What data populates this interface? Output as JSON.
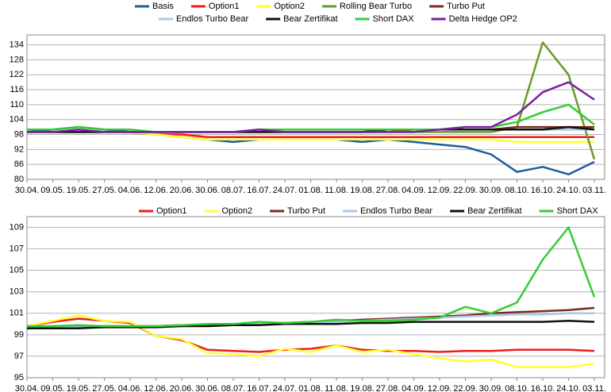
{
  "chart_data": [
    {
      "type": "line",
      "categories": [
        "30.04.",
        "09.05.",
        "19.05.",
        "27.05.",
        "04.06.",
        "12.06.",
        "20.06.",
        "30.06.",
        "08.07.",
        "16.07.",
        "24.07.",
        "01.08.",
        "11.08.",
        "19.08.",
        "27.08.",
        "04.09.",
        "12.09.",
        "22.09.",
        "30.09.",
        "08.10.",
        "16.10.",
        "24.10.",
        "03.11."
      ],
      "ylim": [
        80,
        138
      ],
      "yticks": [
        80,
        86,
        92,
        98,
        104,
        110,
        116,
        122,
        128,
        134
      ],
      "grid": true,
      "series": [
        {
          "name": "Basis",
          "color": "#1f5b9e",
          "values": [
            99,
            100,
            101,
            100,
            99,
            98,
            97,
            96,
            95,
            96,
            96,
            96,
            96,
            95,
            96,
            95,
            94,
            93,
            90,
            83,
            85,
            82,
            87
          ]
        },
        {
          "name": "Option1",
          "color": "#ee1c1c",
          "values": [
            99,
            99,
            99,
            99,
            99,
            98,
            98,
            97,
            97,
            97,
            97,
            97,
            97,
            97,
            97,
            97,
            97,
            97,
            97,
            97,
            97,
            97,
            97
          ]
        },
        {
          "name": "Option2",
          "color": "#ffff33",
          "values": [
            99,
            99,
            99,
            99,
            99,
            98,
            97,
            96,
            96,
            96,
            96,
            96,
            96,
            96,
            96,
            96,
            96,
            96,
            96,
            95,
            95,
            95,
            95
          ]
        },
        {
          "name": "Rolling Bear Turbo",
          "color": "#6a9a2a",
          "values": [
            99,
            99,
            99,
            99,
            99,
            99,
            99,
            99,
            99,
            99,
            99,
            99,
            99,
            99,
            99,
            99,
            99,
            99,
            99,
            101,
            135,
            122,
            88
          ]
        },
        {
          "name": "Turbo Put",
          "color": "#7b2a1a",
          "values": [
            99,
            99,
            99,
            99,
            99,
            99,
            99,
            99,
            99,
            99,
            99,
            99,
            99,
            99,
            99,
            100,
            100,
            100,
            100,
            101,
            101,
            101,
            101
          ]
        },
        {
          "name": "Endlos Turbo Bear",
          "color": "#a8c8e8",
          "values": [
            99,
            99,
            99,
            99,
            99,
            99,
            99,
            99,
            99,
            99,
            99,
            99,
            99,
            99,
            99,
            99,
            100,
            100,
            100,
            100,
            100,
            100,
            100
          ]
        },
        {
          "name": "Bear Zertifikat",
          "color": "#111111",
          "values": [
            99,
            99,
            99,
            99,
            99,
            99,
            99,
            99,
            99,
            99,
            99,
            99,
            99,
            99,
            100,
            100,
            100,
            100,
            100,
            100,
            100,
            101,
            100
          ]
        },
        {
          "name": "Short DAX",
          "color": "#33cc33",
          "values": [
            100,
            100,
            101,
            100,
            100,
            99,
            99,
            99,
            99,
            100,
            100,
            100,
            100,
            100,
            100,
            100,
            100,
            101,
            101,
            103,
            107,
            110,
            102
          ]
        },
        {
          "name": "Delta Hedge OP2",
          "color": "#7a1fa0",
          "values": [
            99,
            99,
            100,
            99,
            99,
            99,
            99,
            99,
            99,
            100,
            99,
            99,
            99,
            99,
            99,
            99,
            100,
            101,
            101,
            106,
            115,
            119,
            112
          ]
        }
      ]
    },
    {
      "type": "line",
      "categories": [
        "30.04.",
        "09.05.",
        "19.05.",
        "27.05.",
        "04.06.",
        "12.06.",
        "20.06.",
        "30.06.",
        "08.07.",
        "16.07.",
        "24.07.",
        "01.08.",
        "11.08.",
        "19.08.",
        "27.08.",
        "04.09.",
        "12.09.",
        "22.09.",
        "30.09.",
        "08.10.",
        "16.10.",
        "24.10.",
        "03.11."
      ],
      "ylim": [
        95,
        110
      ],
      "yticks": [
        95,
        97,
        99,
        101,
        103,
        105,
        107,
        109
      ],
      "grid": true,
      "series": [
        {
          "name": "Option1",
          "color": "#ee1c1c",
          "values": [
            99.8,
            100.2,
            100.5,
            100.3,
            100.1,
            98.9,
            98.5,
            97.6,
            97.5,
            97.4,
            97.6,
            97.7,
            98,
            97.6,
            97.5,
            97.5,
            97.4,
            97.5,
            97.5,
            97.6,
            97.6,
            97.6,
            97.5
          ]
        },
        {
          "name": "Option2",
          "color": "#ffff33",
          "values": [
            99.8,
            100.3,
            100.8,
            100.3,
            100.2,
            98.9,
            98.6,
            97.3,
            97.2,
            97,
            97.7,
            97.4,
            98,
            97.4,
            97.6,
            97.2,
            96.8,
            96.5,
            96.7,
            96,
            96,
            96,
            96.3
          ]
        },
        {
          "name": "Turbo Put",
          "color": "#7b2a1a",
          "values": [
            99.7,
            99.7,
            99.8,
            99.8,
            99.8,
            99.8,
            99.9,
            99.9,
            100,
            100,
            100.1,
            100.2,
            100.3,
            100.4,
            100.5,
            100.6,
            100.7,
            100.8,
            101,
            101.1,
            101.2,
            101.3,
            101.5
          ]
        },
        {
          "name": "Endlos Turbo Bear",
          "color": "#a8c8e8",
          "values": [
            99.7,
            99.7,
            99.7,
            99.7,
            99.8,
            99.8,
            99.8,
            99.9,
            99.9,
            100,
            100,
            100.1,
            100.2,
            100.3,
            100.4,
            100.5,
            100.6,
            100.7,
            100.8,
            100.9,
            100.9,
            101,
            101
          ]
        },
        {
          "name": "Bear Zertifikat",
          "color": "#111111",
          "values": [
            99.6,
            99.6,
            99.6,
            99.7,
            99.7,
            99.7,
            99.8,
            99.8,
            99.9,
            99.9,
            100,
            100,
            100,
            100.1,
            100.1,
            100.2,
            100.2,
            100.2,
            100.2,
            100.2,
            100.2,
            100.3,
            100.2
          ]
        },
        {
          "name": "Short DAX",
          "color": "#33cc33",
          "values": [
            99.8,
            99.8,
            99.9,
            99.8,
            99.8,
            99.8,
            99.9,
            100,
            100,
            100.2,
            100.1,
            100.2,
            100.4,
            100.3,
            100.3,
            100.4,
            100.6,
            101.6,
            101,
            102,
            106,
            109,
            102.5
          ]
        }
      ]
    }
  ]
}
